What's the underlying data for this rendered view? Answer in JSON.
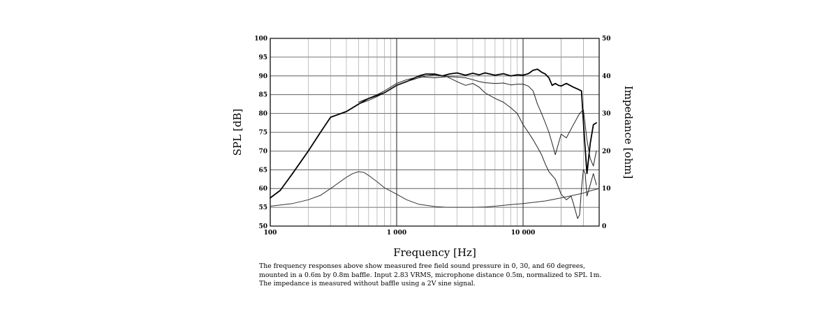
{
  "chart_data": {
    "type": "line",
    "xscale": "log",
    "xlim": [
      100,
      40000
    ],
    "ylim": [
      50,
      100
    ],
    "y2lim": [
      0,
      50
    ],
    "xlabel": "Frequency [Hz]",
    "ylabel": "SPL [dB]",
    "y2label": "Impedance [ohm]",
    "x_ticks": [
      100,
      1000,
      10000
    ],
    "x_tick_labels": [
      "100",
      "1 000",
      "10 000"
    ],
    "y_ticks": [
      50,
      55,
      60,
      65,
      70,
      75,
      80,
      85,
      90,
      95,
      100
    ],
    "y_tick_labels": [
      "50",
      "55",
      "60",
      "65",
      "70",
      "75",
      "80",
      "85",
      "90",
      "95",
      "100"
    ],
    "y2_ticks": [
      0,
      10,
      20,
      30,
      40,
      50
    ],
    "y2_tick_labels": [
      "0",
      "10",
      "20",
      "30",
      "40",
      "50"
    ],
    "grid": true,
    "series": [
      {
        "name": "SPL 0 degrees",
        "axis": "left",
        "width": 1.8,
        "color": "#000000",
        "x": [
          100,
          120,
          150,
          200,
          250,
          300,
          400,
          500,
          600,
          800,
          1000,
          1200,
          1500,
          1700,
          2000,
          2300,
          2600,
          3000,
          3500,
          4000,
          4500,
          5000,
          6000,
          7000,
          8000,
          9000,
          10000,
          11000,
          12000,
          13000,
          14000,
          15000,
          16000,
          17000,
          18000,
          19000,
          20000,
          22000,
          25000,
          27000,
          29000,
          30500,
          32000,
          34000,
          36000,
          38000
        ],
        "y": [
          57.5,
          59.5,
          64,
          70,
          75,
          79,
          80.5,
          82.5,
          84,
          85.5,
          87.5,
          88.5,
          90,
          90.5,
          90.5,
          90,
          90.5,
          90.8,
          90.2,
          90.7,
          90.3,
          90.8,
          90.2,
          90.6,
          90,
          90.3,
          90.2,
          90.6,
          91.5,
          91.8,
          91,
          90.5,
          89.5,
          87.5,
          88,
          87.5,
          87.3,
          88,
          87,
          86.5,
          86,
          74,
          64,
          72,
          77,
          77.5
        ]
      },
      {
        "name": "SPL 30 degrees",
        "axis": "left",
        "width": 1,
        "color": "#222222",
        "x": [
          500,
          600,
          700,
          800,
          1000,
          1200,
          1500,
          1700,
          2000,
          2500,
          3000,
          3500,
          4000,
          4500,
          5000,
          6000,
          7000,
          8000,
          9000,
          10000,
          11000,
          12000,
          13000,
          14000,
          15000,
          16000,
          17000,
          18000,
          20000,
          22000,
          25000,
          28000,
          30000,
          32000,
          34000,
          36000,
          38000
        ],
        "y": [
          82.5,
          83.5,
          84.5,
          85.5,
          87.5,
          88.5,
          89.5,
          90,
          90.3,
          89.8,
          89.7,
          89.5,
          89,
          88.5,
          88.2,
          88,
          88.1,
          87.6,
          87.8,
          87.8,
          87.3,
          86,
          82.5,
          80,
          77.5,
          75,
          72,
          69,
          74.5,
          73.5,
          77,
          80,
          81,
          73,
          68,
          66,
          70
        ]
      },
      {
        "name": "SPL 60 degrees",
        "axis": "left",
        "width": 1,
        "color": "#222222",
        "x": [
          500,
          700,
          800,
          1000,
          1200,
          1500,
          2000,
          2500,
          3000,
          3500,
          4000,
          4500,
          5000,
          6000,
          7000,
          8000,
          9000,
          10000,
          11000,
          12000,
          13000,
          14000,
          15000,
          16000,
          18000,
          20000,
          22000,
          24000,
          25000,
          26000,
          27000,
          28000,
          29000,
          30000,
          31000,
          32000,
          34000,
          36000,
          38000
        ],
        "y": [
          83,
          85,
          86,
          88,
          89,
          89.8,
          89.5,
          89.8,
          88.5,
          87.5,
          88,
          87,
          85.5,
          84,
          83,
          81.5,
          80,
          77,
          75,
          73,
          71,
          69,
          66.5,
          64.5,
          62.5,
          58.5,
          57,
          58,
          56,
          54,
          52,
          53,
          60,
          65,
          64,
          58,
          61,
          64,
          61
        ]
      },
      {
        "name": "Impedance",
        "axis": "right",
        "width": 1,
        "color": "#333333",
        "x": [
          100,
          150,
          200,
          250,
          300,
          400,
          450,
          500,
          550,
          600,
          700,
          800,
          1000,
          1200,
          1500,
          2000,
          2500,
          3000,
          4000,
          5000,
          6000,
          8000,
          10000,
          15000,
          20000,
          25000,
          30000,
          35000,
          40000
        ],
        "y": [
          5.3,
          6,
          7,
          8.2,
          10,
          13,
          14,
          14.5,
          14.3,
          13.5,
          11.8,
          10.2,
          8.5,
          7,
          5.8,
          5.2,
          5,
          5,
          5,
          5.1,
          5.3,
          5.7,
          6,
          6.7,
          7.5,
          8.2,
          8.8,
          9.5,
          10
        ]
      }
    ]
  },
  "caption": "The frequency responses above show measured free field sound pressure in 0, 30, and 60 degrees, mounted in a 0.6m by 0.8m baffle. Input 2.83 VRMS, microphone distance 0.5m, normalized to SPL 1m. The impedance is measured without baffle using a 2V sine signal."
}
